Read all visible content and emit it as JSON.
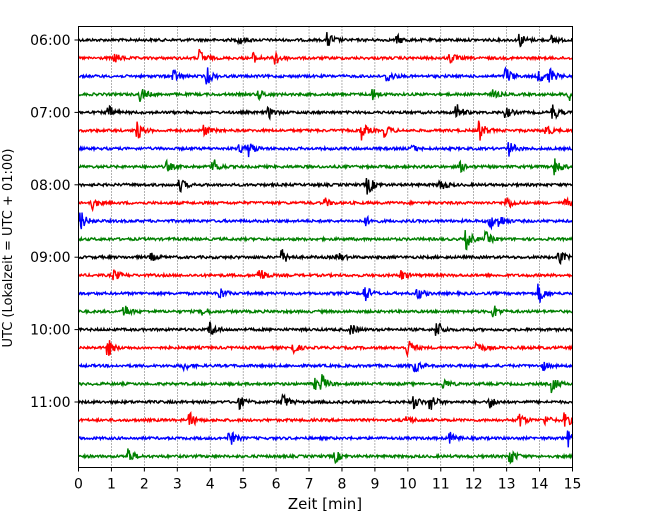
{
  "chart_data": {
    "type": "line",
    "title": "",
    "xlabel": "Zeit  [min]",
    "ylabel": "UTC (Lokalzeit = UTC + 01:00)",
    "xlim": [
      0,
      15
    ],
    "x_ticks": [
      0,
      1,
      2,
      3,
      4,
      5,
      6,
      7,
      8,
      9,
      10,
      11,
      12,
      13,
      14,
      15
    ],
    "y_tick_labels": [
      "06:00",
      "07:00",
      "08:00",
      "09:00",
      "10:00",
      "11:00"
    ],
    "grid": "vertical dotted",
    "trace_minutes": 15,
    "trace_colors": [
      "#000000",
      "#ff0000",
      "#0000ff",
      "#008000"
    ],
    "traces": [
      {
        "start": "06:00",
        "color_index": 0,
        "events": [
          4.9,
          7.6,
          9.7,
          13.4,
          14.4
        ]
      },
      {
        "start": "06:15",
        "color_index": 1,
        "events": [
          1.1,
          3.7,
          5.3,
          6.0,
          11.3
        ]
      },
      {
        "start": "06:30",
        "color_index": 2,
        "events": [
          2.9,
          3.9,
          9.4,
          13.0,
          14.0,
          14.3
        ]
      },
      {
        "start": "06:45",
        "color_index": 3,
        "events": [
          1.9,
          5.5,
          8.9,
          12.6,
          14.9
        ]
      },
      {
        "start": "07:00",
        "color_index": 0,
        "events": [
          0.9,
          5.8,
          11.5,
          13.0,
          14.4
        ]
      },
      {
        "start": "07:15",
        "color_index": 1,
        "events": [
          1.8,
          3.8,
          8.6,
          9.3,
          12.2,
          14.2
        ]
      },
      {
        "start": "07:30",
        "color_index": 2,
        "events": [
          4.9,
          5.2,
          10.1,
          13.1
        ]
      },
      {
        "start": "07:45",
        "color_index": 3,
        "events": [
          2.7,
          4.1,
          11.6,
          14.5
        ]
      },
      {
        "start": "08:00",
        "color_index": 0,
        "events": [
          3.1,
          8.8,
          11.0
        ]
      },
      {
        "start": "08:15",
        "color_index": 1,
        "events": [
          0.4,
          7.5,
          13.0,
          14.8
        ]
      },
      {
        "start": "08:30",
        "color_index": 2,
        "events": [
          0.1,
          8.7,
          12.5,
          12.8
        ]
      },
      {
        "start": "08:45",
        "color_index": 3,
        "events": [
          11.8,
          12.4
        ]
      },
      {
        "start": "09:00",
        "color_index": 0,
        "events": [
          2.2,
          6.2,
          7.9,
          14.6
        ]
      },
      {
        "start": "09:15",
        "color_index": 1,
        "events": [
          1.1,
          5.5,
          9.8
        ]
      },
      {
        "start": "09:30",
        "color_index": 2,
        "events": [
          4.3,
          8.7,
          10.3,
          14.0
        ]
      },
      {
        "start": "09:45",
        "color_index": 3,
        "events": [
          1.4,
          3.8,
          12.6
        ]
      },
      {
        "start": "10:00",
        "color_index": 0,
        "events": [
          4.0,
          8.3,
          10.9
        ]
      },
      {
        "start": "10:15",
        "color_index": 1,
        "events": [
          0.9,
          6.5,
          10.0,
          12.1
        ]
      },
      {
        "start": "10:30",
        "color_index": 2,
        "events": [
          3.2,
          10.2,
          14.1
        ]
      },
      {
        "start": "10:45",
        "color_index": 3,
        "events": [
          7.2,
          7.4,
          11.1,
          14.4
        ]
      },
      {
        "start": "11:00",
        "color_index": 0,
        "events": [
          4.9,
          6.2,
          10.2,
          10.7,
          12.5
        ]
      },
      {
        "start": "11:15",
        "color_index": 1,
        "events": [
          3.4,
          10.0,
          13.4,
          14.2,
          14.8
        ]
      },
      {
        "start": "11:30",
        "color_index": 2,
        "events": [
          4.6,
          11.3,
          14.9
        ]
      },
      {
        "start": "11:45",
        "color_index": 3,
        "events": [
          1.5,
          7.8,
          13.1
        ]
      }
    ]
  }
}
